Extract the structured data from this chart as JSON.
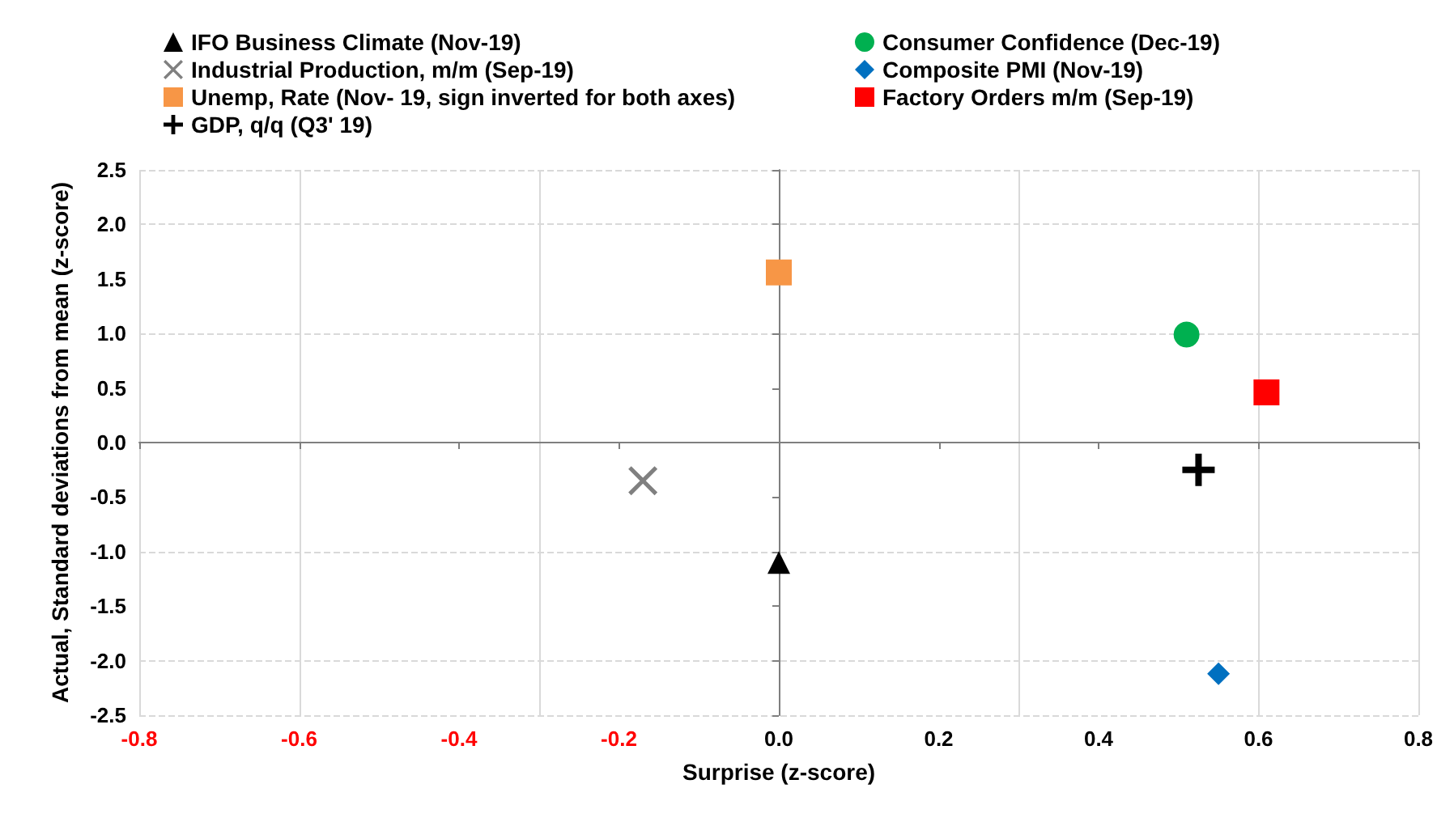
{
  "chart_data": {
    "type": "scatter",
    "xlabel": "Surprise (z-score)",
    "ylabel": "Actual, Standard deviations from mean (z-score)",
    "xlim": [
      -0.8,
      0.8
    ],
    "xticks": [
      -0.8,
      -0.6,
      -0.4,
      -0.2,
      {
        "value": 0,
        "label": "0.0"
      },
      0.2,
      0.4,
      0.6,
      0.8
    ],
    "ylim": [
      -2.5,
      2.5
    ],
    "yticks": [
      -2.5,
      {
        "value": -2,
        "label": "-2.0"
      },
      -1.5,
      {
        "value": -1,
        "label": "-1.0"
      },
      -0.5,
      {
        "value": 0,
        "label": "0.0"
      },
      0.5,
      {
        "value": 1,
        "label": "1.0"
      },
      1.5,
      {
        "value": 2,
        "label": "2.0"
      },
      2.5
    ],
    "grid": true,
    "legend": "top",
    "series": [
      {
        "name": "IFO Business Climate (Nov-19)",
        "color": "#000000",
        "marker": "triangle",
        "x": [
          0
        ],
        "values": [
          -1.1
        ]
      },
      {
        "name": "Industrial Production, m/m (Sep-19)",
        "color": "#808080",
        "marker": "x",
        "x": [
          -0.17
        ],
        "values": [
          -0.35
        ]
      },
      {
        "name": "Unemp, Rate (Nov- 19, sign inverted for both axes)",
        "color": "#f79646",
        "marker": "square",
        "x": [
          0
        ],
        "values": [
          1.56
        ]
      },
      {
        "name": "GDP, q/q (Q3' 19)",
        "color": "#000000",
        "marker": "plus",
        "x": [
          0.525
        ],
        "values": [
          -0.25
        ]
      },
      {
        "name": "Consumer Confidence (Dec-19)",
        "color": "#00b050",
        "marker": "circle",
        "x": [
          0.51
        ],
        "values": [
          0.99
        ]
      },
      {
        "name": "Composite PMI (Nov-19)",
        "color": "#0070c0",
        "marker": "diamond",
        "x": [
          0.55
        ],
        "values": [
          -2.12
        ]
      },
      {
        "name": "Factory Orders m/m (Sep-19)",
        "color": "#ff0000",
        "marker": "square",
        "x": [
          0.61
        ],
        "values": [
          0.46
        ]
      }
    ]
  }
}
